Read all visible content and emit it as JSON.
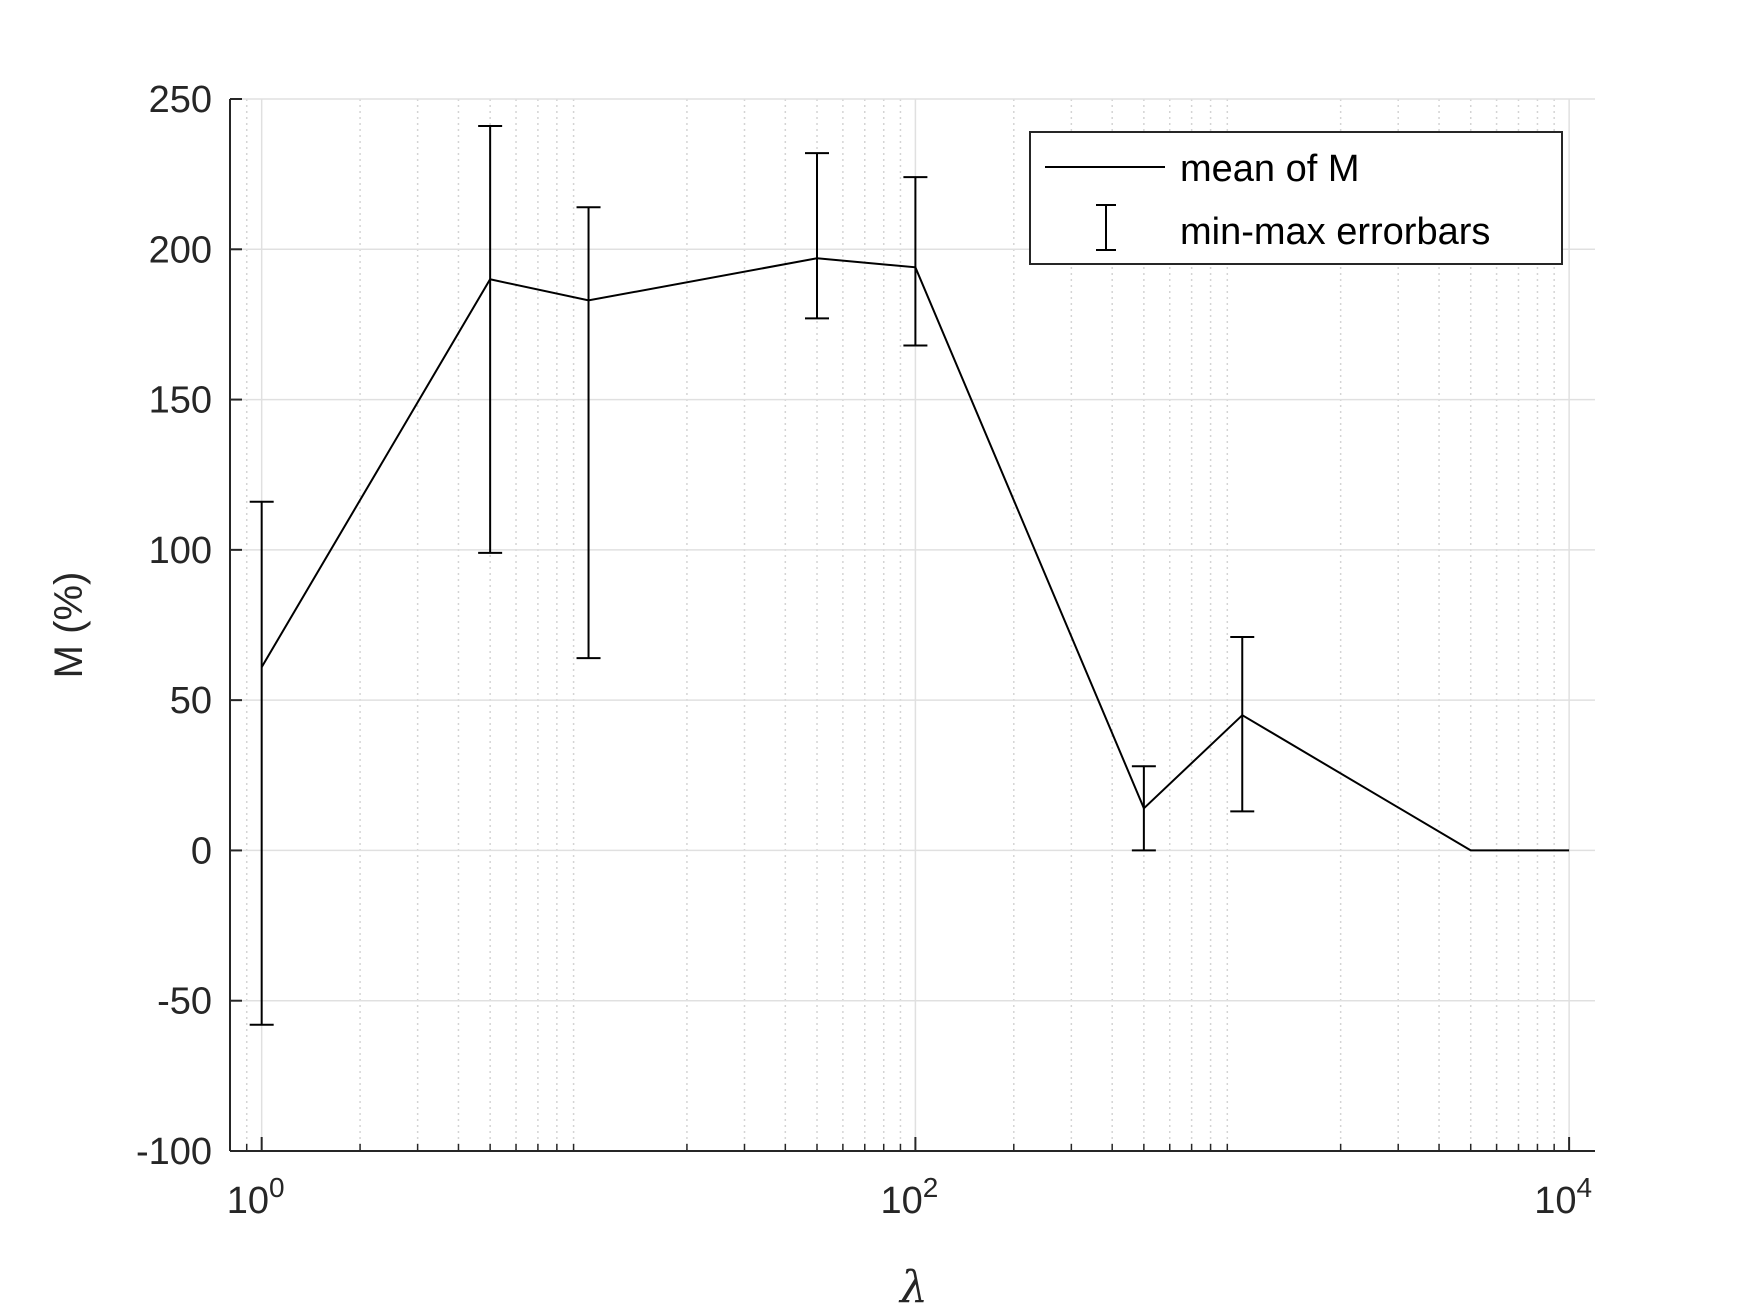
{
  "chart_data": {
    "type": "line",
    "title": "",
    "xlabel": "λ",
    "ylabel": "M (%)",
    "xscale": "log",
    "xlim": [
      0.8,
      12000
    ],
    "ylim": [
      -100,
      250
    ],
    "grid": true,
    "minor_grid": true,
    "legend_position": "top-right",
    "colors": {
      "line": "#000000",
      "grid": "#e0e0e0",
      "axis": "#262626"
    },
    "x_ticks": [
      {
        "value": 1,
        "base": "10",
        "exp": "0"
      },
      {
        "value": 100,
        "base": "10",
        "exp": "2"
      },
      {
        "value": 10000,
        "base": "10",
        "exp": "4"
      }
    ],
    "y_ticks": [
      {
        "value": 250,
        "label": "250"
      },
      {
        "value": 200,
        "label": "200"
      },
      {
        "value": 150,
        "label": "150"
      },
      {
        "value": 100,
        "label": "100"
      },
      {
        "value": 50,
        "label": "50"
      },
      {
        "value": 0,
        "label": "0"
      },
      {
        "value": -50,
        "label": "-50"
      },
      {
        "value": -100,
        "label": "-100"
      }
    ],
    "legend": [
      {
        "label": "mean of M",
        "marker": "line"
      },
      {
        "label": "min-max errorbars",
        "marker": "errorbar"
      }
    ],
    "series": [
      {
        "name": "mean of M",
        "x": [
          1,
          5,
          10,
          50,
          100,
          500,
          1000,
          5000,
          10000
        ],
        "y": [
          61,
          190,
          183,
          197,
          194,
          14,
          45,
          0,
          0
        ],
        "y_min": [
          -58,
          99,
          64,
          177,
          168,
          0,
          13,
          null,
          null
        ],
        "y_max": [
          116,
          241,
          214,
          232,
          224,
          28,
          71,
          null,
          null
        ]
      }
    ]
  }
}
